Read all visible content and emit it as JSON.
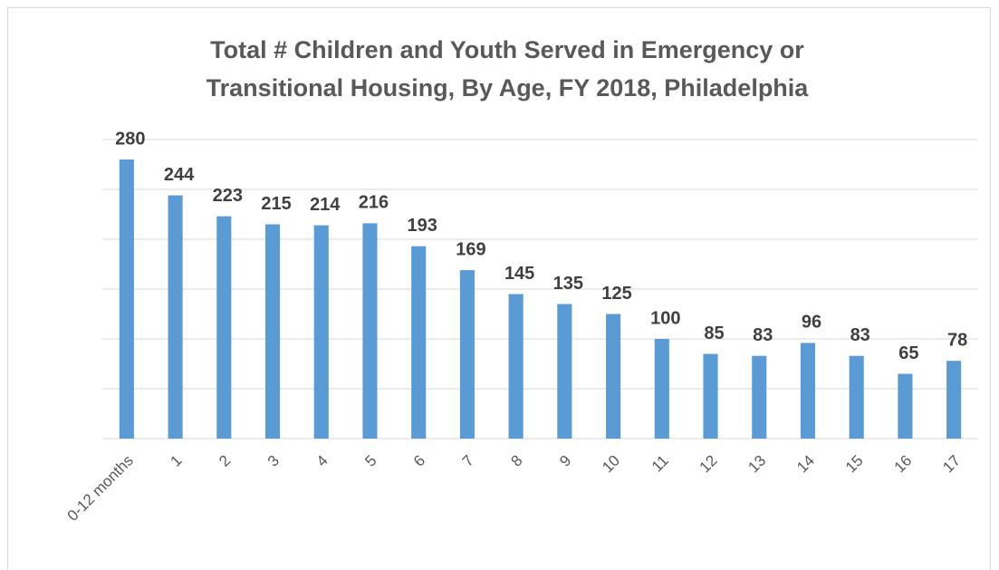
{
  "chart_data": {
    "type": "bar",
    "title": [
      "Total # Children and Youth Served in Emergency or",
      "Transitional Housing, By Age, FY 2018, Philadelphia"
    ],
    "categories": [
      "0-12 months",
      "1",
      "2",
      "3",
      "4",
      "5",
      "6",
      "7",
      "8",
      "9",
      "10",
      "11",
      "12",
      "13",
      "14",
      "15",
      "16",
      "17"
    ],
    "values": [
      280,
      244,
      223,
      215,
      214,
      216,
      193,
      169,
      145,
      135,
      125,
      100,
      85,
      83,
      96,
      83,
      65,
      78
    ],
    "color": "#5b9bd5",
    "ylim": [
      0,
      300
    ],
    "yticks": [
      0,
      50,
      100,
      150,
      200,
      250,
      300
    ],
    "grid": true
  }
}
